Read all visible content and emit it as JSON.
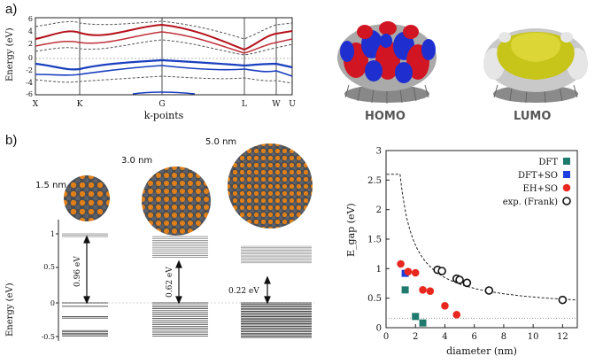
{
  "panel_a": {
    "label": "a)",
    "band": {
      "ylabel": "Energy (eV)",
      "xlabel": "k-points",
      "yticks": [
        "6",
        "4",
        "2",
        "0",
        "-2",
        "-4",
        "-6"
      ],
      "kpoints": [
        "X",
        "K",
        "G",
        "L",
        "W",
        "U"
      ]
    },
    "homo_caption": "HOMO",
    "lumo_caption": "LUMO"
  },
  "panel_b": {
    "label": "b)",
    "sizes": [
      "1.5 nm",
      "3.0 nm",
      "5.0 nm"
    ],
    "ylabel": "Energy (eV)",
    "yticks": [
      "1",
      "0.5",
      "0",
      "-0.5"
    ],
    "gaps": [
      "0.96 eV",
      "0.62 eV",
      "0.22 eV"
    ]
  },
  "chart_data": {
    "type": "scatter",
    "xlabel": "diameter (nm)",
    "ylabel": "E_gap (eV)",
    "xlim": [
      0,
      13
    ],
    "ylim": [
      0,
      3
    ],
    "xticks": [
      0,
      2,
      4,
      6,
      8,
      10,
      12
    ],
    "yticks": [
      0,
      0.5,
      1,
      1.5,
      2,
      2.5,
      3
    ],
    "legend_position": "top-right",
    "series": [
      {
        "name": "DFT",
        "color": "#1f7a6e",
        "marker": "square",
        "x": [
          1.3,
          2.0,
          2.5
        ],
        "y": [
          0.64,
          0.19,
          0.08
        ]
      },
      {
        "name": "DFT+SO",
        "color": "#1e3fe0",
        "marker": "square",
        "x": [
          1.3
        ],
        "y": [
          0.92
        ]
      },
      {
        "name": "EH+SO",
        "color": "#e8271e",
        "marker": "circle",
        "x": [
          1.0,
          1.5,
          2.0,
          2.5,
          3.0,
          4.0,
          4.8
        ],
        "y": [
          1.08,
          0.95,
          0.93,
          0.64,
          0.62,
          0.37,
          0.22
        ]
      },
      {
        "name": "exp. (Frank)",
        "color": "#111111",
        "marker": "open-circle",
        "x": [
          3.5,
          3.8,
          4.8,
          5.0,
          5.5,
          7.0,
          12.0
        ],
        "y": [
          0.98,
          0.96,
          0.83,
          0.81,
          0.76,
          0.63,
          0.47
        ]
      }
    ],
    "fit_curve": {
      "style": "dashed",
      "form": "a/d + b",
      "a": 2.2,
      "b": 0.3
    },
    "reference_line": {
      "style": "dotted",
      "y": 0.16
    }
  }
}
